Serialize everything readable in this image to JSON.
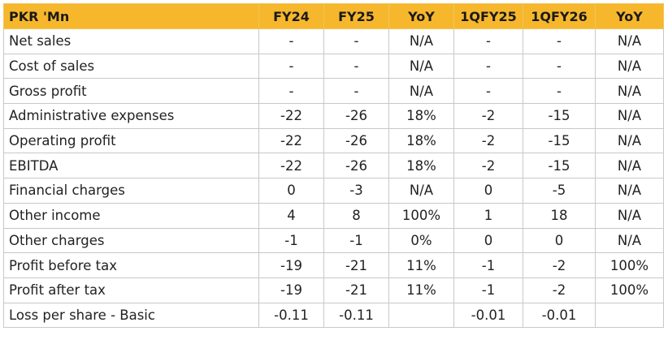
{
  "table": {
    "header": [
      "PKR 'Mn",
      "FY24",
      "FY25",
      "YoY",
      "1QFY25",
      "1QFY26",
      "YoY"
    ],
    "rows": [
      [
        "Net sales",
        "-",
        "-",
        "N/A",
        "-",
        "-",
        "N/A"
      ],
      [
        "Cost of sales",
        "-",
        "-",
        "N/A",
        "-",
        "-",
        "N/A"
      ],
      [
        "Gross profit",
        "-",
        "-",
        "N/A",
        "-",
        "-",
        "N/A"
      ],
      [
        "Administrative expenses",
        "-22",
        "-26",
        "18%",
        "-2",
        "-15",
        "N/A"
      ],
      [
        "Operating profit",
        "-22",
        "-26",
        "18%",
        "-2",
        "-15",
        "N/A"
      ],
      [
        "EBITDA",
        "-22",
        "-26",
        "18%",
        "-2",
        "-15",
        "N/A"
      ],
      [
        "Financial charges",
        "0",
        "-3",
        "N/A",
        "0",
        "-5",
        "N/A"
      ],
      [
        "Other income",
        "4",
        "8",
        "100%",
        "1",
        "18",
        "N/A"
      ],
      [
        "Other charges",
        "-1",
        "-1",
        "0%",
        "0",
        "0",
        "N/A"
      ],
      [
        "Profit before tax",
        "-19",
        "-21",
        "11%",
        "-1",
        "-2",
        "100%"
      ],
      [
        "Profit after tax",
        "-19",
        "-21",
        "11%",
        "-1",
        "-2",
        "100%"
      ],
      [
        "Loss per share - Basic",
        "-0.11",
        "-0.11",
        null,
        "-0.01",
        "-0.01",
        null
      ]
    ]
  }
}
